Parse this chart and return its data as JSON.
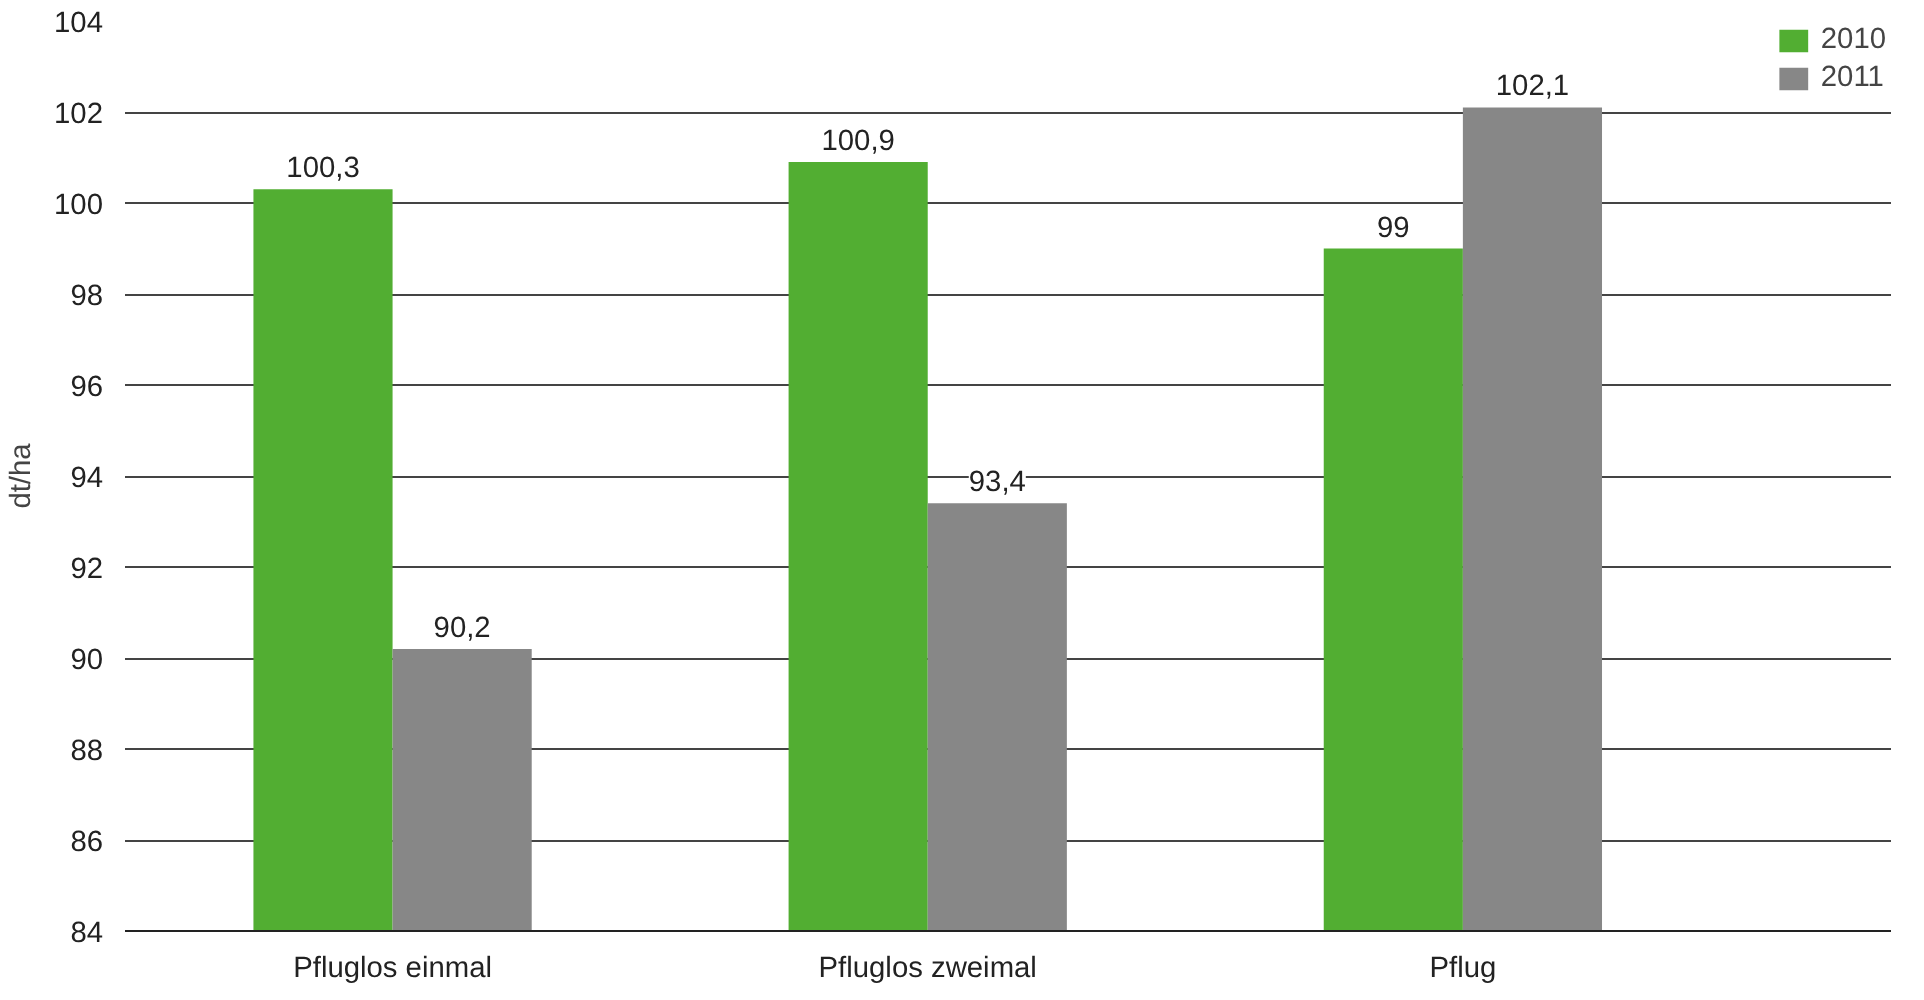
{
  "chart_data": {
    "type": "bar",
    "ylabel": "dt/ha",
    "categories": [
      "Pfluglos einmal",
      "Pfluglos zweimal",
      "Pflug"
    ],
    "series": [
      {
        "name": "2010",
        "color": "#52ae32",
        "values": [
          100.3,
          100.9,
          99
        ],
        "value_labels": [
          "100,3",
          "100,9",
          "99"
        ]
      },
      {
        "name": "2011",
        "color": "#878787",
        "values": [
          90.2,
          93.4,
          102.1
        ],
        "value_labels": [
          "90,2",
          "93,4",
          "102,1"
        ]
      }
    ],
    "ylim": [
      84,
      104
    ],
    "yticks": [
      84,
      86,
      88,
      90,
      92,
      94,
      96,
      98,
      100,
      102,
      104
    ],
    "grid": "y",
    "legend": "top right"
  }
}
